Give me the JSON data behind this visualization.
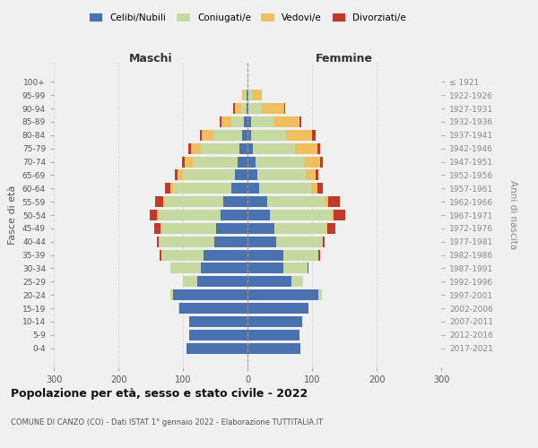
{
  "age_groups": [
    "0-4",
    "5-9",
    "10-14",
    "15-19",
    "20-24",
    "25-29",
    "30-34",
    "35-39",
    "40-44",
    "45-49",
    "50-54",
    "55-59",
    "60-64",
    "65-69",
    "70-74",
    "75-79",
    "80-84",
    "85-89",
    "90-94",
    "95-99",
    "100+"
  ],
  "birth_years": [
    "2017-2021",
    "2012-2016",
    "2007-2011",
    "2002-2006",
    "1997-2001",
    "1992-1996",
    "1987-1991",
    "1982-1986",
    "1977-1981",
    "1972-1976",
    "1967-1971",
    "1962-1966",
    "1957-1961",
    "1952-1956",
    "1947-1951",
    "1942-1946",
    "1937-1941",
    "1932-1936",
    "1927-1931",
    "1922-1926",
    "≤ 1921"
  ],
  "males": {
    "celibe": [
      95,
      90,
      90,
      105,
      115,
      78,
      72,
      68,
      52,
      48,
      42,
      38,
      25,
      20,
      15,
      12,
      8,
      5,
      2,
      2,
      0
    ],
    "coniugato": [
      0,
      0,
      0,
      2,
      5,
      22,
      48,
      65,
      85,
      85,
      95,
      90,
      90,
      80,
      70,
      60,
      45,
      20,
      8,
      3,
      0
    ],
    "vedovo": [
      0,
      0,
      0,
      0,
      0,
      0,
      0,
      0,
      1,
      2,
      3,
      3,
      5,
      8,
      12,
      15,
      18,
      15,
      10,
      3,
      0
    ],
    "divorziato": [
      0,
      0,
      0,
      0,
      0,
      0,
      0,
      3,
      2,
      10,
      12,
      12,
      8,
      5,
      5,
      5,
      3,
      3,
      2,
      0,
      0
    ]
  },
  "females": {
    "nubile": [
      82,
      80,
      85,
      95,
      110,
      68,
      55,
      55,
      45,
      42,
      35,
      30,
      18,
      15,
      12,
      8,
      5,
      5,
      2,
      2,
      0
    ],
    "coniugata": [
      0,
      0,
      0,
      0,
      5,
      18,
      38,
      55,
      70,
      80,
      95,
      90,
      80,
      75,
      75,
      65,
      55,
      35,
      20,
      5,
      1
    ],
    "vedova": [
      0,
      0,
      0,
      0,
      0,
      0,
      0,
      0,
      1,
      2,
      4,
      5,
      10,
      15,
      25,
      35,
      40,
      40,
      35,
      15,
      1
    ],
    "divorziata": [
      0,
      0,
      0,
      0,
      0,
      0,
      2,
      3,
      3,
      12,
      18,
      18,
      8,
      5,
      5,
      5,
      5,
      3,
      2,
      0,
      0
    ]
  },
  "colors": {
    "celibe": "#4a72b0",
    "coniugato": "#c5d9a0",
    "vedovo": "#f0c060",
    "divorziato": "#c0392b"
  },
  "xlim": 300,
  "title": "Popolazione per età, sesso e stato civile - 2022",
  "subtitle": "COMUNE DI CANZO (CO) - Dati ISTAT 1° gennaio 2022 - Elaborazione TUTTITALIA.IT",
  "ylabel": "Fasce di età",
  "ylabel_right": "Anni di nascita",
  "xlabel_left": "Maschi",
  "xlabel_right": "Femmine",
  "bg_color": "#f0f0f0",
  "legend_labels": [
    "Celibi/Nubili",
    "Coniugati/e",
    "Vedovi/e",
    "Divorziati/e"
  ]
}
